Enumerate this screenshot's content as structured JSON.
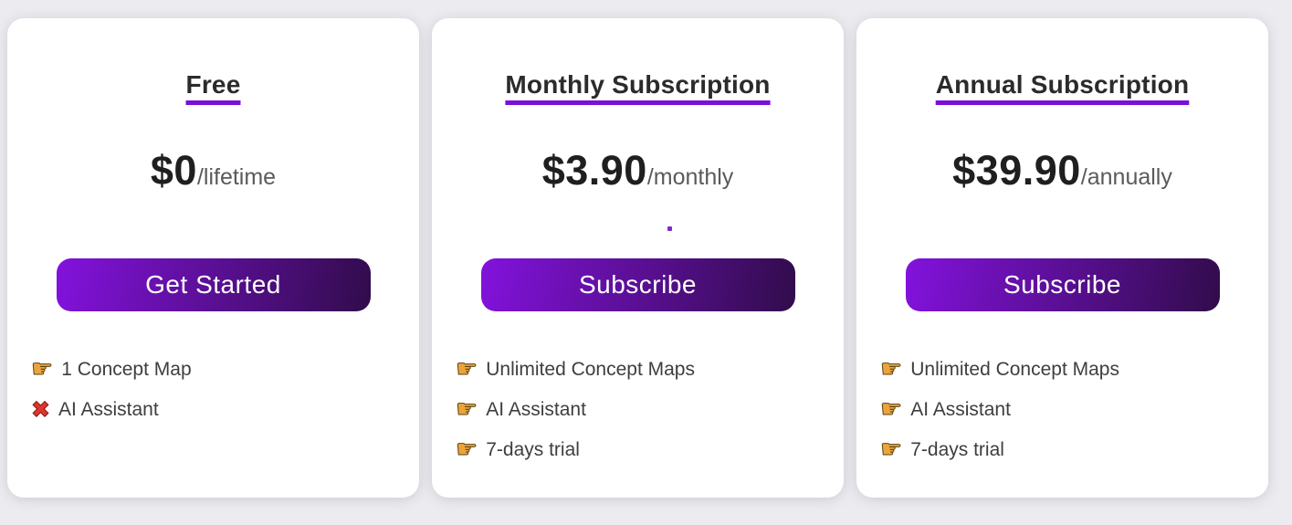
{
  "theme": {
    "page_background": "#ececf0",
    "card_background": "#ffffff",
    "heading_color": "#2b2b2b",
    "underline_color": "#7c0edc",
    "price_color": "#1f1f1f",
    "period_color": "#5a5a5a",
    "feature_text_color": "#3e3e3e",
    "button_gradient_start": "#8312dd",
    "button_gradient_end": "#310c4b",
    "button_text_color": "#ffffff",
    "hand_icon_color": "#eba43c",
    "cross_icon_color": "#e0352b",
    "stray_dot_color": "#7c2bc9"
  },
  "icons": {
    "hand": "☛",
    "cross": "✖"
  },
  "cards": [
    {
      "title": "Free",
      "price": "$0",
      "period": "/lifetime",
      "cta": "Get Started",
      "features": [
        {
          "icon": "pointing-hand",
          "label": "1 Concept Map"
        },
        {
          "icon": "red-cross",
          "label": "AI Assistant"
        }
      ]
    },
    {
      "title": "Monthly Subscription",
      "price": "$3.90",
      "period": "/monthly",
      "cta": "Subscribe",
      "stray_dot": ".",
      "features": [
        {
          "icon": "pointing-hand",
          "label": "Unlimited Concept Maps"
        },
        {
          "icon": "pointing-hand",
          "label": "AI Assistant"
        },
        {
          "icon": "pointing-hand",
          "label": "7-days trial"
        }
      ]
    },
    {
      "title": "Annual Subscription",
      "price": "$39.90",
      "period": "/annually",
      "cta": "Subscribe",
      "features": [
        {
          "icon": "pointing-hand",
          "label": "Unlimited Concept Maps"
        },
        {
          "icon": "pointing-hand",
          "label": "AI Assistant"
        },
        {
          "icon": "pointing-hand",
          "label": "7-days trial"
        }
      ]
    }
  ]
}
